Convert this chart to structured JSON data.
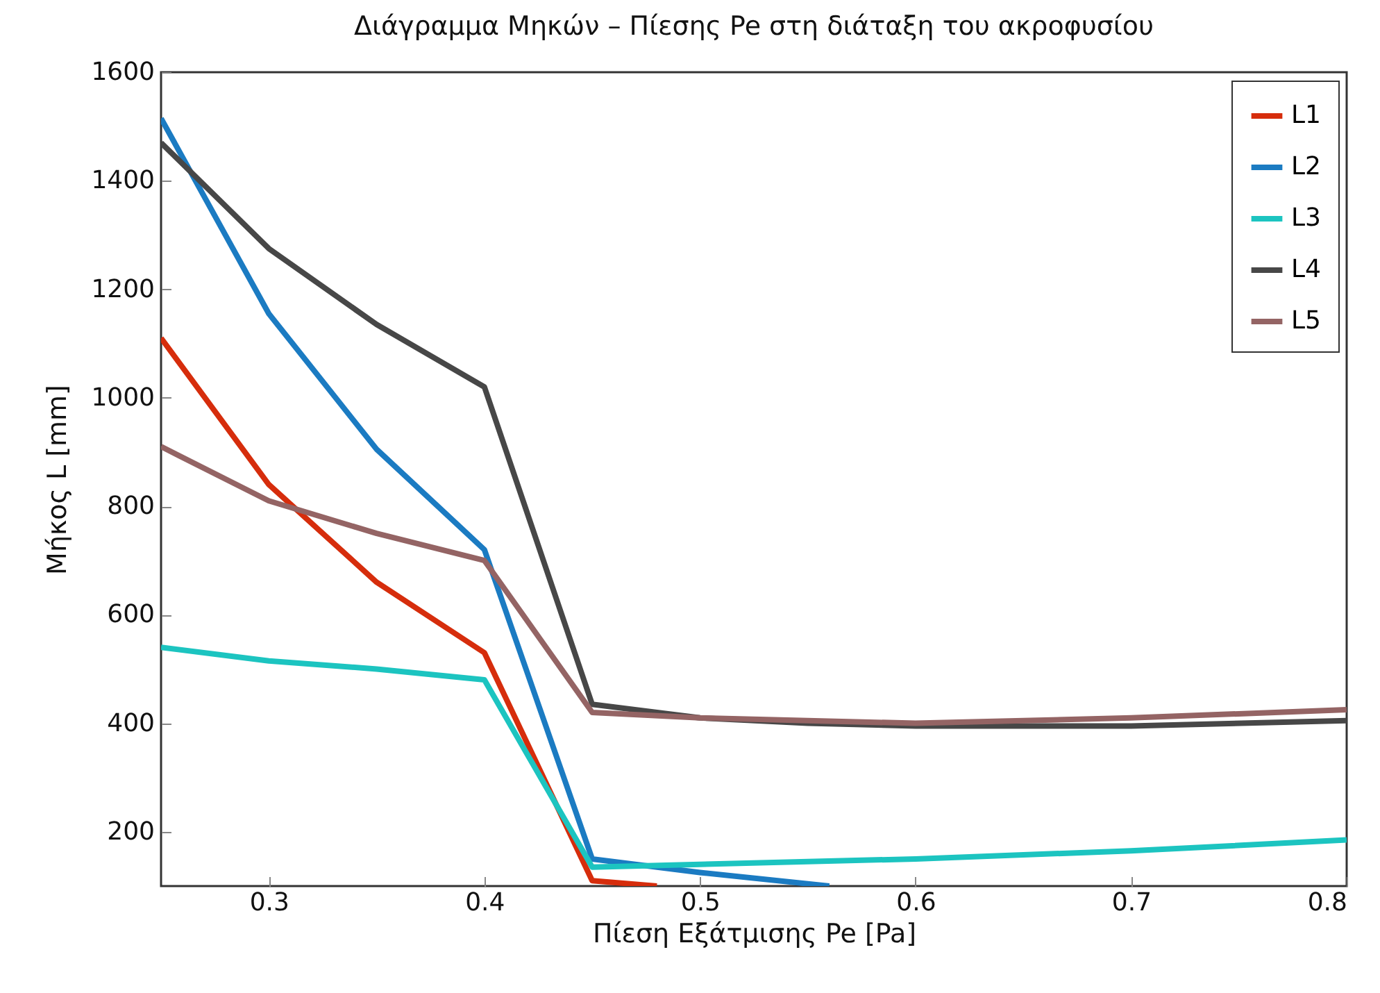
{
  "chart_data": {
    "type": "line",
    "title": "Διάγραμμα Μηκών – Πίεσης Pe στη διάταξη του ακροφυσίου",
    "xlabel": "Πίεση Εξάτμισης Pe [Pa]",
    "ylabel": "Μήκος L [mm]",
    "xlim": [
      0.25,
      0.8
    ],
    "xticks": [
      0.3,
      0.4,
      0.5,
      0.6,
      0.7,
      0.8
    ],
    "ylim": [
      100,
      1600
    ],
    "yticks": [
      200,
      400,
      600,
      800,
      1000,
      1200,
      1400,
      1600
    ],
    "grid": false,
    "legend": "top right",
    "line_style": "solid",
    "marker": "none",
    "series": [
      {
        "name": "L1",
        "color": "#d62d0c",
        "x": [
          0.25,
          0.3,
          0.35,
          0.4,
          0.45,
          0.48
        ],
        "values": [
          1110,
          840,
          660,
          530,
          110,
          100
        ]
      },
      {
        "name": "L2",
        "color": "#1b7bc2",
        "x": [
          0.25,
          0.3,
          0.35,
          0.4,
          0.45,
          0.5,
          0.56
        ],
        "values": [
          1515,
          1155,
          905,
          720,
          150,
          125,
          100
        ]
      },
      {
        "name": "L3",
        "color": "#1cc4c0",
        "x": [
          0.25,
          0.3,
          0.35,
          0.4,
          0.45,
          0.5,
          0.6,
          0.7,
          0.8
        ],
        "values": [
          540,
          515,
          500,
          480,
          135,
          140,
          150,
          165,
          185
        ]
      },
      {
        "name": "L4",
        "color": "#474747",
        "x": [
          0.25,
          0.3,
          0.35,
          0.4,
          0.45,
          0.5,
          0.55,
          0.6,
          0.7,
          0.8
        ],
        "values": [
          1470,
          1275,
          1135,
          1020,
          435,
          410,
          400,
          395,
          395,
          405
        ]
      },
      {
        "name": "L5",
        "color": "#946464",
        "x": [
          0.25,
          0.3,
          0.35,
          0.4,
          0.45,
          0.5,
          0.6,
          0.7,
          0.8
        ],
        "values": [
          910,
          810,
          750,
          700,
          420,
          410,
          400,
          410,
          425
        ]
      }
    ]
  }
}
